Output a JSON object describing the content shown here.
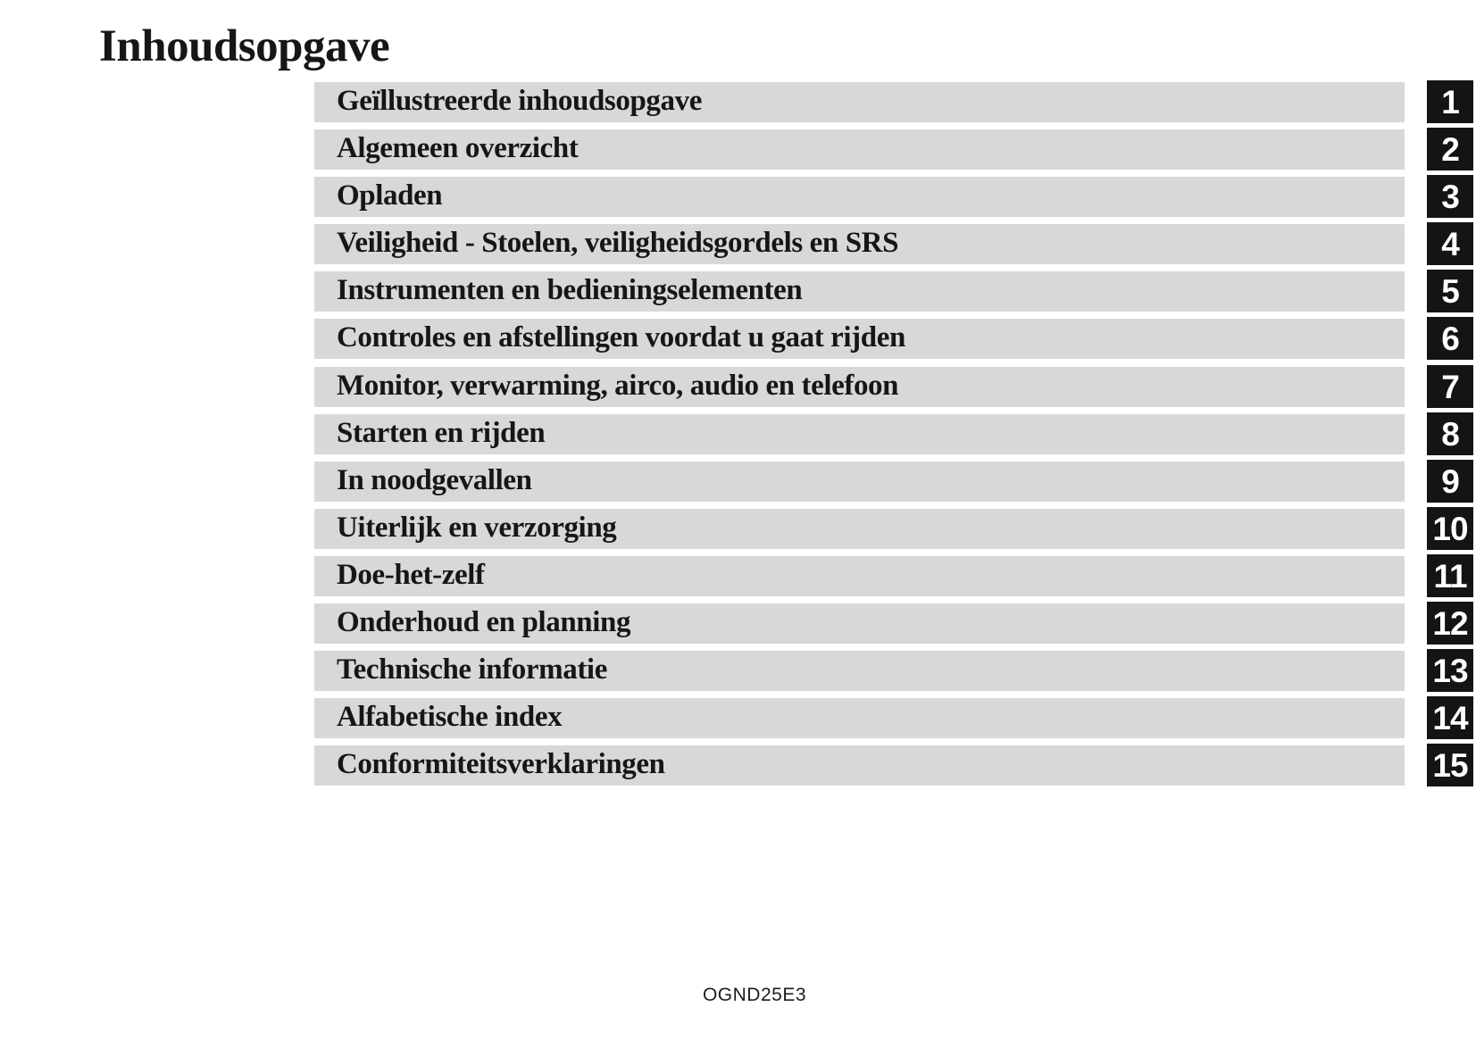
{
  "page": {
    "title": "Inhoudsopgave",
    "footer_code": "OGND25E3"
  },
  "toc": {
    "items": [
      {
        "label": "Geïllustreerde inhoudsopgave",
        "number": "1"
      },
      {
        "label": "Algemeen overzicht",
        "number": "2"
      },
      {
        "label": "Opladen",
        "number": "3"
      },
      {
        "label": "Veiligheid - Stoelen, veiligheidsgordels en SRS",
        "number": "4"
      },
      {
        "label": "Instrumenten en bedieningselementen",
        "number": "5"
      },
      {
        "label": "Controles en afstellingen voordat u gaat rijden",
        "number": "6"
      },
      {
        "label": "Monitor, verwarming, airco, audio en telefoon",
        "number": "7"
      },
      {
        "label": "Starten en rijden",
        "number": "8"
      },
      {
        "label": "In noodgevallen",
        "number": "9"
      },
      {
        "label": "Uiterlijk en verzorging",
        "number": "10"
      },
      {
        "label": "Doe-het-zelf",
        "number": "11"
      },
      {
        "label": "Onderhoud en planning",
        "number": "12"
      },
      {
        "label": "Technische informatie",
        "number": "13"
      },
      {
        "label": "Alfabetische index",
        "number": "14"
      },
      {
        "label": "Conformiteitsverklaringen",
        "number": "15"
      }
    ]
  },
  "colors": {
    "bar_bg": "#d8d8d8",
    "tab_bg": "#141414",
    "tab_text": "#ffffff",
    "text": "#161616"
  }
}
